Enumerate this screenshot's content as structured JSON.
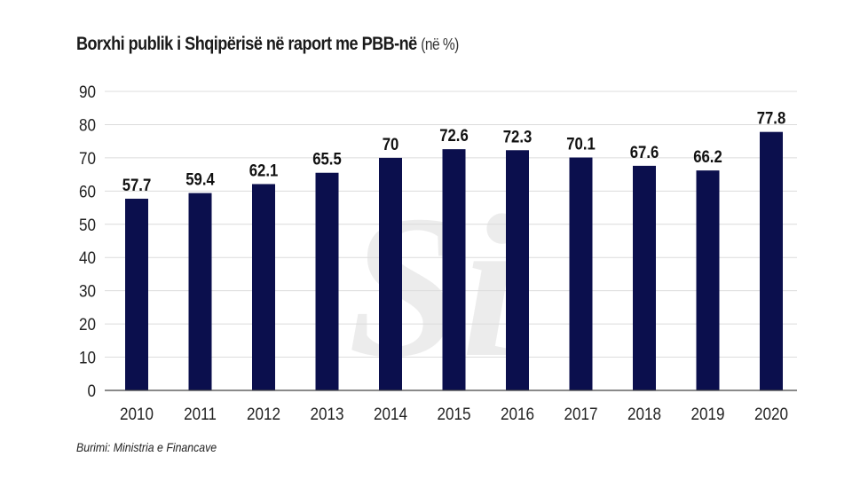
{
  "chart_data": {
    "type": "bar",
    "title": "Borxhi publik i Shqipërisë në raport me PBB-në",
    "title_unit": "(në %)",
    "categories": [
      "2010",
      "2011",
      "2012",
      "2013",
      "2014",
      "2015",
      "2016",
      "2017",
      "2018",
      "2019",
      "2020"
    ],
    "values": [
      57.7,
      59.4,
      62.1,
      65.5,
      70,
      72.6,
      72.3,
      70.1,
      67.6,
      66.2,
      77.8
    ],
    "data_labels": [
      "57.7",
      "59.4",
      "62.1",
      "65.5",
      "70",
      "72.6",
      "72.3",
      "70.1",
      "67.6",
      "66.2",
      "77.8"
    ],
    "ylim": [
      0,
      90
    ],
    "yticks": [
      0,
      10,
      20,
      30,
      40,
      50,
      60,
      70,
      80,
      90
    ],
    "grid": true,
    "legend": "none",
    "bar_color": "#0b0f4d",
    "xlabel": "",
    "ylabel": ""
  },
  "source": "Burimi: Ministria e Financave",
  "watermark": "Si"
}
